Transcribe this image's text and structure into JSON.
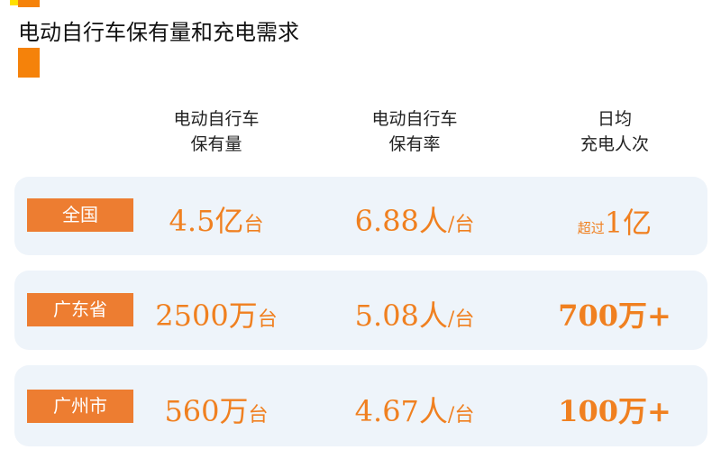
{
  "title": "电动自行车保有量和充电需求",
  "headers": [
    {
      "line1": "电动自行车",
      "line2": "保有量"
    },
    {
      "line1": "电动自行车",
      "line2": "保有率"
    },
    {
      "line1": "日均",
      "line2": "充电人次"
    }
  ],
  "rows": [
    {
      "label": "全国",
      "c1": {
        "num": "4.5亿",
        "unit": "台"
      },
      "c2": {
        "num": "6.88人",
        "unit": "/台"
      },
      "c3": {
        "prefix": "超过",
        "num": "1亿"
      }
    },
    {
      "label": "广东省",
      "c1": {
        "num": "2500万",
        "unit": "台"
      },
      "c2": {
        "num": "5.08人",
        "unit": "/台"
      },
      "c3": {
        "prefix": "",
        "num": "700万+"
      }
    },
    {
      "label": "广州市",
      "c1": {
        "num": "560万",
        "unit": "台"
      },
      "c2": {
        "num": "4.67人",
        "unit": "/台"
      },
      "c3": {
        "prefix": "",
        "num": "100万+"
      }
    }
  ],
  "colors": {
    "accent": "#ED7D31",
    "value_text": "#F08020",
    "card_bg": "#EEF4FA",
    "deco_yellow": "#FFE000"
  }
}
